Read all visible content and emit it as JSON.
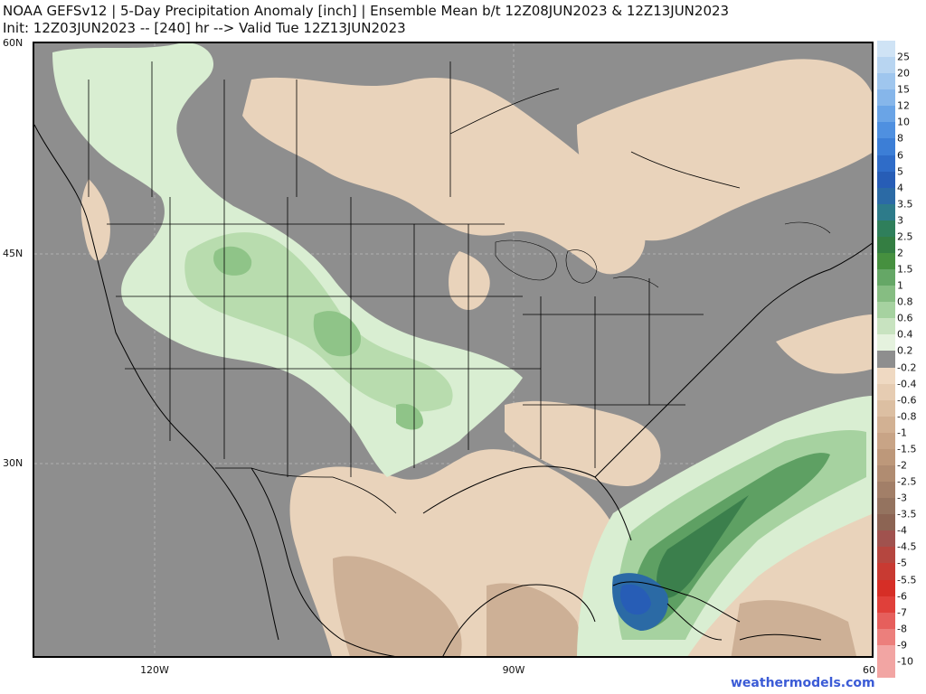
{
  "header": {
    "title_line1": "NOAA GEFSv12 | 5-Day Precipitation Anomaly [inch] | Ensemble Mean b/t 12Z08JUN2023 & 12Z13JUN2023",
    "title_line2": "Init: 12Z03JUN2023 -- [240] hr --> Valid Tue 12Z13JUN2023"
  },
  "axes": {
    "lat_labels": [
      "60N",
      "45N",
      "30N"
    ],
    "lon_labels": [
      "120W",
      "90W",
      "60"
    ]
  },
  "colorbar": {
    "labels": [
      "25",
      "20",
      "15",
      "12",
      "10",
      "8",
      "6",
      "5",
      "4",
      "3.5",
      "3",
      "2.5",
      "2",
      "1.5",
      "1",
      "0.8",
      "0.6",
      "0.4",
      "0.2",
      "-0.2",
      "-0.4",
      "-0.6",
      "-0.8",
      "-1",
      "-1.5",
      "-2",
      "-2.5",
      "-3",
      "-3.5",
      "-4",
      "-4.5",
      "-5",
      "-5.5",
      "-6",
      "-7",
      "-8",
      "-9",
      "-10"
    ],
    "colors": [
      "#cfe3f5",
      "#b8d5f1",
      "#9fc6ee",
      "#86b6ea",
      "#6aa4e6",
      "#4f90e0",
      "#3c7ed6",
      "#2f6cc8",
      "#275db6",
      "#2b6aa5",
      "#2d7b8a",
      "#2f7f5b",
      "#347e42",
      "#46903f",
      "#65a766",
      "#86bd82",
      "#a6d2a0",
      "#c8e3c0",
      "#e5f2de",
      "#8e8e8e",
      "#efd9c2",
      "#e6ccb2",
      "#dcbfa2",
      "#d2b193",
      "#c8a486",
      "#bd987a",
      "#b08c71",
      "#a27f68",
      "#94735f",
      "#8c6453",
      "#a0524e",
      "#b5463f",
      "#c83a32",
      "#d62e26",
      "#e0403a",
      "#e65f5c",
      "#ec7f7c",
      "#f2a5a3"
    ]
  },
  "branding": {
    "text": "weathermodels.com"
  }
}
